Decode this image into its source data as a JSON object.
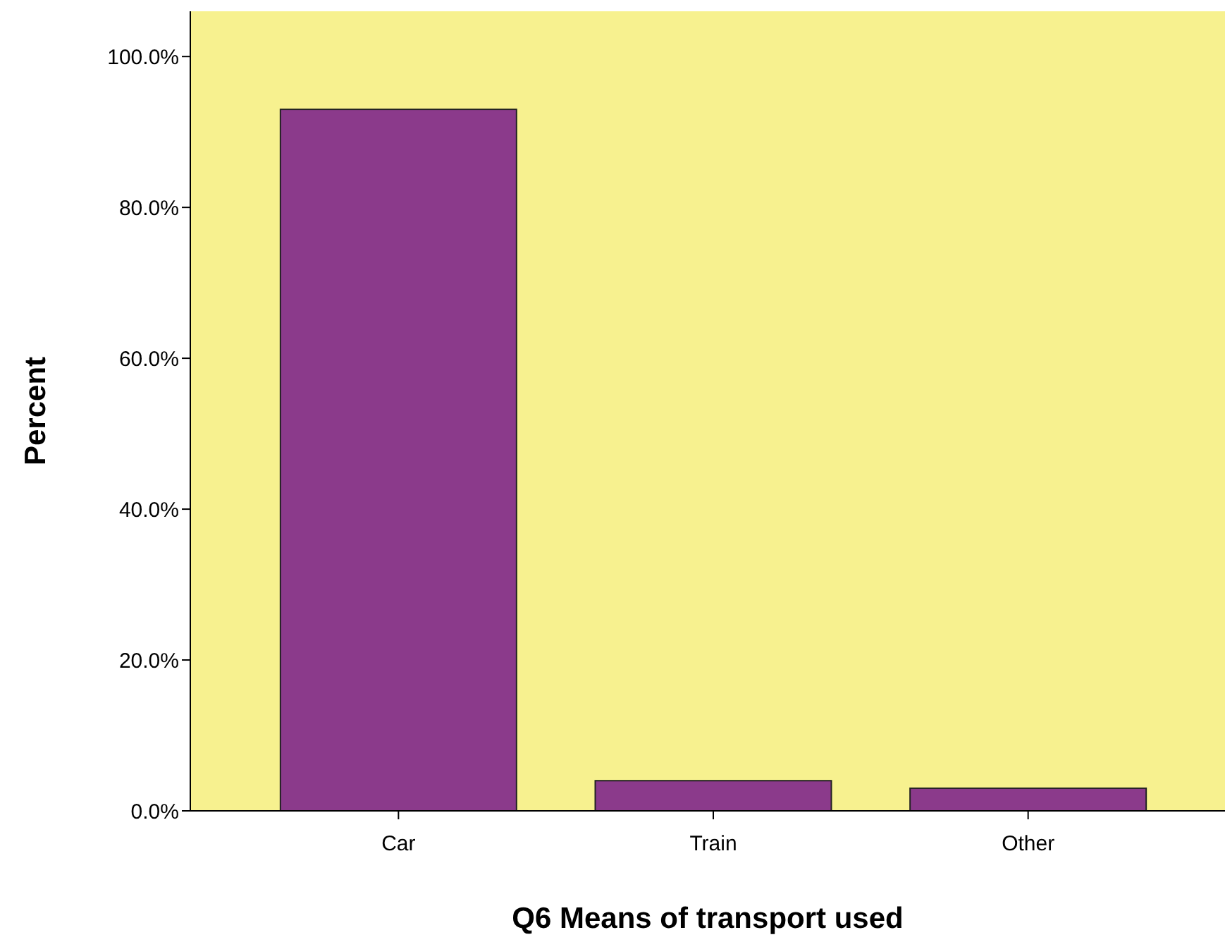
{
  "chart_data": {
    "type": "bar",
    "xlabel": "Q6 Means of transport used",
    "ylabel": "Percent",
    "categories": [
      "Car",
      "Train",
      "Other"
    ],
    "values": [
      93,
      4,
      3
    ],
    "color": "#8b3a8b",
    "ylim": [
      0,
      106
    ],
    "yticks": [
      {
        "value": 0,
        "label": "0.0%"
      },
      {
        "value": 20,
        "label": "20.0%"
      },
      {
        "value": 40,
        "label": "40.0%"
      },
      {
        "value": 60,
        "label": "60.0%"
      },
      {
        "value": 80,
        "label": "80.0%"
      },
      {
        "value": 100,
        "label": "100.0%"
      }
    ],
    "grid": false
  }
}
